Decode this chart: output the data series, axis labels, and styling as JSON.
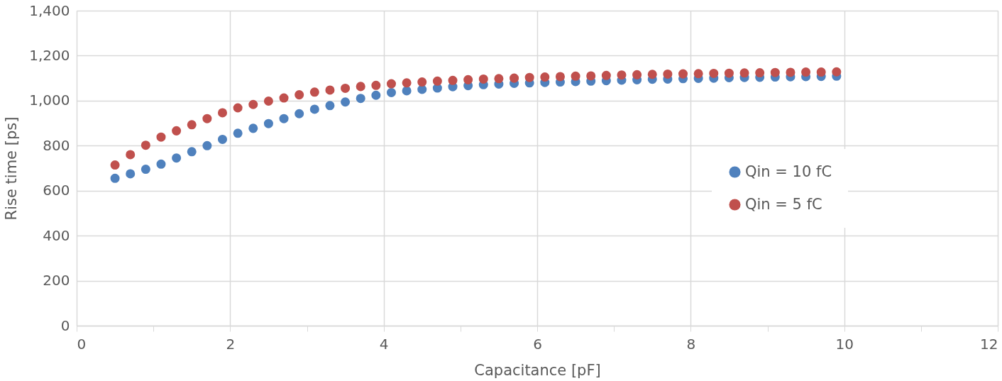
{
  "chart_data": {
    "type": "scatter",
    "xlabel": "Capacitance [pF]",
    "ylabel": "Rise time [ps]",
    "x": [
      0.5,
      0.7,
      0.9,
      1.1,
      1.3,
      1.5,
      1.7,
      1.9,
      2.1,
      2.3,
      2.5,
      2.7,
      2.9,
      3.1,
      3.3,
      3.5,
      3.7,
      3.9,
      4.1,
      4.3,
      4.5,
      4.7,
      4.9,
      5.1,
      5.3,
      5.5,
      5.7,
      5.9,
      6.1,
      6.3,
      6.5,
      6.7,
      6.9,
      7.1,
      7.3,
      7.5,
      7.7,
      7.9,
      8.1,
      8.3,
      8.5,
      8.7,
      8.9,
      9.1,
      9.3,
      9.5,
      9.7,
      9.9
    ],
    "series": [
      {
        "name": "Qin = 10 fC",
        "color": "#4f81bd",
        "values": [
          655,
          675,
          695,
          718,
          745,
          773,
          800,
          828,
          855,
          877,
          898,
          920,
          942,
          962,
          978,
          994,
          1010,
          1024,
          1036,
          1044,
          1050,
          1056,
          1062,
          1067,
          1071,
          1074,
          1077,
          1079,
          1081,
          1083,
          1085,
          1087,
          1089,
          1091,
          1093,
          1095,
          1096,
          1098,
          1099,
          1100,
          1102,
          1103,
          1104,
          1105,
          1106,
          1107,
          1108,
          1109
        ]
      },
      {
        "name": "Qin = 5 fC",
        "color": "#c0504d",
        "values": [
          714,
          760,
          802,
          838,
          866,
          893,
          920,
          946,
          968,
          983,
          998,
          1012,
          1026,
          1038,
          1047,
          1055,
          1063,
          1068,
          1075,
          1079,
          1083,
          1087,
          1090,
          1093,
          1096,
          1098,
          1100,
          1103,
          1105,
          1107,
          1109,
          1110,
          1112,
          1114,
          1115,
          1117,
          1118,
          1119,
          1120,
          1121,
          1122,
          1123,
          1124,
          1125,
          1126,
          1127,
          1127,
          1128
        ]
      }
    ],
    "xlim": [
      0,
      12
    ],
    "xticks": [
      0,
      {
        "value": 1,
        "label": null
      },
      2,
      {
        "value": 3,
        "label": null
      },
      4,
      {
        "value": 5,
        "label": null
      },
      6,
      {
        "value": 7,
        "label": null
      },
      8,
      {
        "value": 9,
        "label": null
      },
      10,
      {
        "value": 11,
        "label": null
      },
      12
    ],
    "ylim": [
      0,
      1400
    ],
    "yticks": [
      0,
      200,
      400,
      600,
      800,
      {
        "value": 1000,
        "label": "1,000"
      },
      {
        "value": 1200,
        "label": "1,200"
      },
      {
        "value": 1400,
        "label": "1,400"
      }
    ],
    "grid": true,
    "legend": "right",
    "marker": "circle"
  }
}
